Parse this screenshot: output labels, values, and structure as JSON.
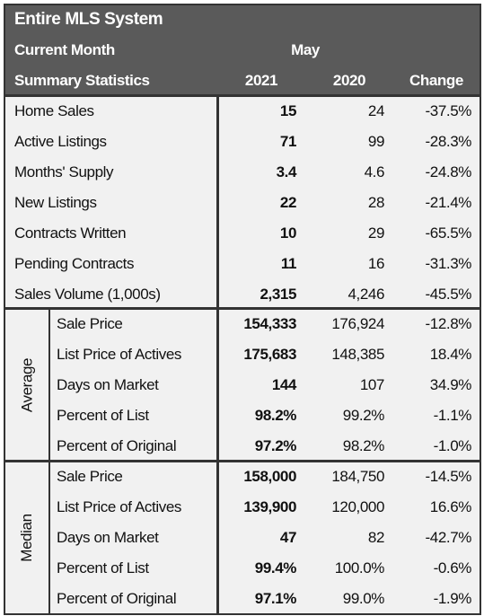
{
  "header": {
    "title": "Entire MLS System",
    "period_label": "Current Month",
    "month": "May",
    "stats_label": "Summary Statistics",
    "columns": [
      "2021",
      "2020",
      "Change"
    ]
  },
  "table": {
    "rows": [
      [
        "Home Sales",
        "15",
        "24",
        "-37.5%"
      ],
      [
        "Active Listings",
        "71",
        "99",
        "-28.3%"
      ],
      [
        "Months' Supply",
        "3.4",
        "4.6",
        "-24.8%"
      ],
      [
        "New Listings",
        "22",
        "28",
        "-21.4%"
      ],
      [
        "Contracts Written",
        "10",
        "29",
        "-65.5%"
      ],
      [
        "Pending Contracts",
        "11",
        "16",
        "-31.3%"
      ],
      [
        "Sales Volume (1,000s)",
        "2,315",
        "4,246",
        "-45.5%"
      ]
    ]
  },
  "average": {
    "label": "Average",
    "rows": [
      [
        "Sale Price",
        "154,333",
        "176,924",
        "-12.8%"
      ],
      [
        "List Price of Actives",
        "175,683",
        "148,385",
        "18.4%"
      ],
      [
        "Days on Market",
        "144",
        "107",
        "34.9%"
      ],
      [
        "Percent of List",
        "98.2%",
        "99.2%",
        "-1.1%"
      ],
      [
        "Percent of Original",
        "97.2%",
        "98.2%",
        "-1.0%"
      ]
    ]
  },
  "median": {
    "label": "Median",
    "rows": [
      [
        "Sale Price",
        "158,000",
        "184,750",
        "-14.5%"
      ],
      [
        "List Price of Actives",
        "139,900",
        "120,000",
        "16.6%"
      ],
      [
        "Days on Market",
        "47",
        "82",
        "-42.7%"
      ],
      [
        "Percent of List",
        "99.4%",
        "100.0%",
        "-0.6%"
      ],
      [
        "Percent of Original",
        "97.1%",
        "99.0%",
        "-1.9%"
      ]
    ]
  }
}
